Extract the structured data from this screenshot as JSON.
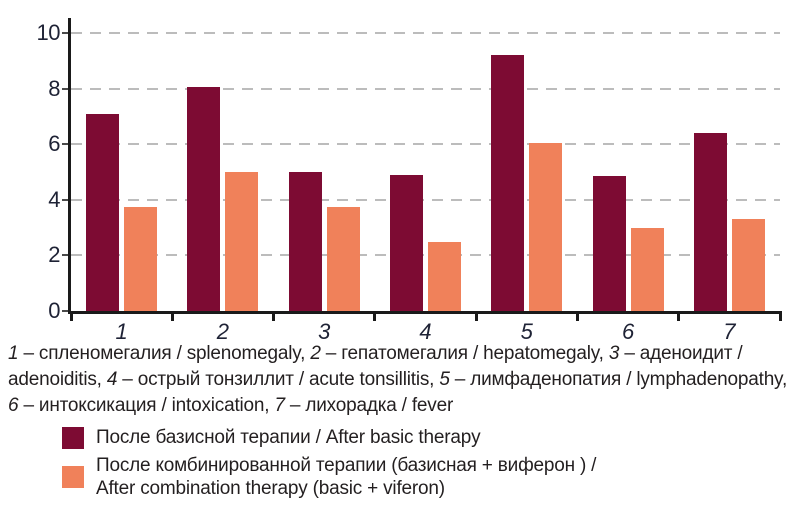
{
  "chart_data": {
    "type": "bar",
    "categories": [
      "1",
      "2",
      "3",
      "4",
      "5",
      "6",
      "7"
    ],
    "series": [
      {
        "name": "После базисной терапии / After basic therapy",
        "color": "#7D0B33",
        "values": [
          7.1,
          8.05,
          5.0,
          4.9,
          9.2,
          4.85,
          6.4
        ]
      },
      {
        "name": "После комбинированной терапии (базисная + виферон ) / After combination therapy (basic + viferon)",
        "color": "#F0815A",
        "values": [
          3.75,
          5.0,
          3.75,
          2.5,
          6.05,
          3.0,
          3.3
        ]
      }
    ],
    "title": "",
    "xlabel": "",
    "ylabel": "",
    "ylim": [
      0,
      10
    ],
    "yticks": [
      0,
      2,
      4,
      6,
      8,
      10
    ],
    "grid": "horizontal-dashed",
    "legend_position": "bottom-left"
  },
  "caption": {
    "lines": [
      [
        {
          "i": true,
          "t": "1"
        },
        {
          "i": false,
          "t": " – спленомегалия / splenomegaly, "
        },
        {
          "i": true,
          "t": "2"
        },
        {
          "i": false,
          "t": " – гепатомегалия / hepatomegaly, "
        },
        {
          "i": true,
          "t": "3"
        },
        {
          "i": false,
          "t": " – аденоидит /"
        }
      ],
      [
        {
          "i": false,
          "t": "adenoiditis, "
        },
        {
          "i": true,
          "t": "4"
        },
        {
          "i": false,
          "t": " – острый тонзиллит / acute tonsillitis, "
        },
        {
          "i": true,
          "t": "5"
        },
        {
          "i": false,
          "t": " – лимфаденопатия / lymphadenopathy,"
        }
      ],
      [
        {
          "i": true,
          "t": "6"
        },
        {
          "i": false,
          "t": " – интоксикация / intoxication, "
        },
        {
          "i": true,
          "t": "7"
        },
        {
          "i": false,
          "t": " – лихорадка / fever"
        }
      ]
    ]
  },
  "legend": {
    "entries": [
      {
        "color": "#7D0B33",
        "lines": [
          "После базисной терапии / After basic therapy"
        ]
      },
      {
        "color": "#F0815A",
        "lines": [
          "После комбинированной терапии (базисная + виферон ) /",
          "After combination therapy (basic + viferon)"
        ]
      }
    ]
  },
  "colors": {
    "series1": "#7D0B33",
    "series2": "#F0815A",
    "gridline": "#BCBCBC",
    "axis": "#1A1A1A",
    "tick_label": "#1E2235",
    "text": "#231F20"
  }
}
